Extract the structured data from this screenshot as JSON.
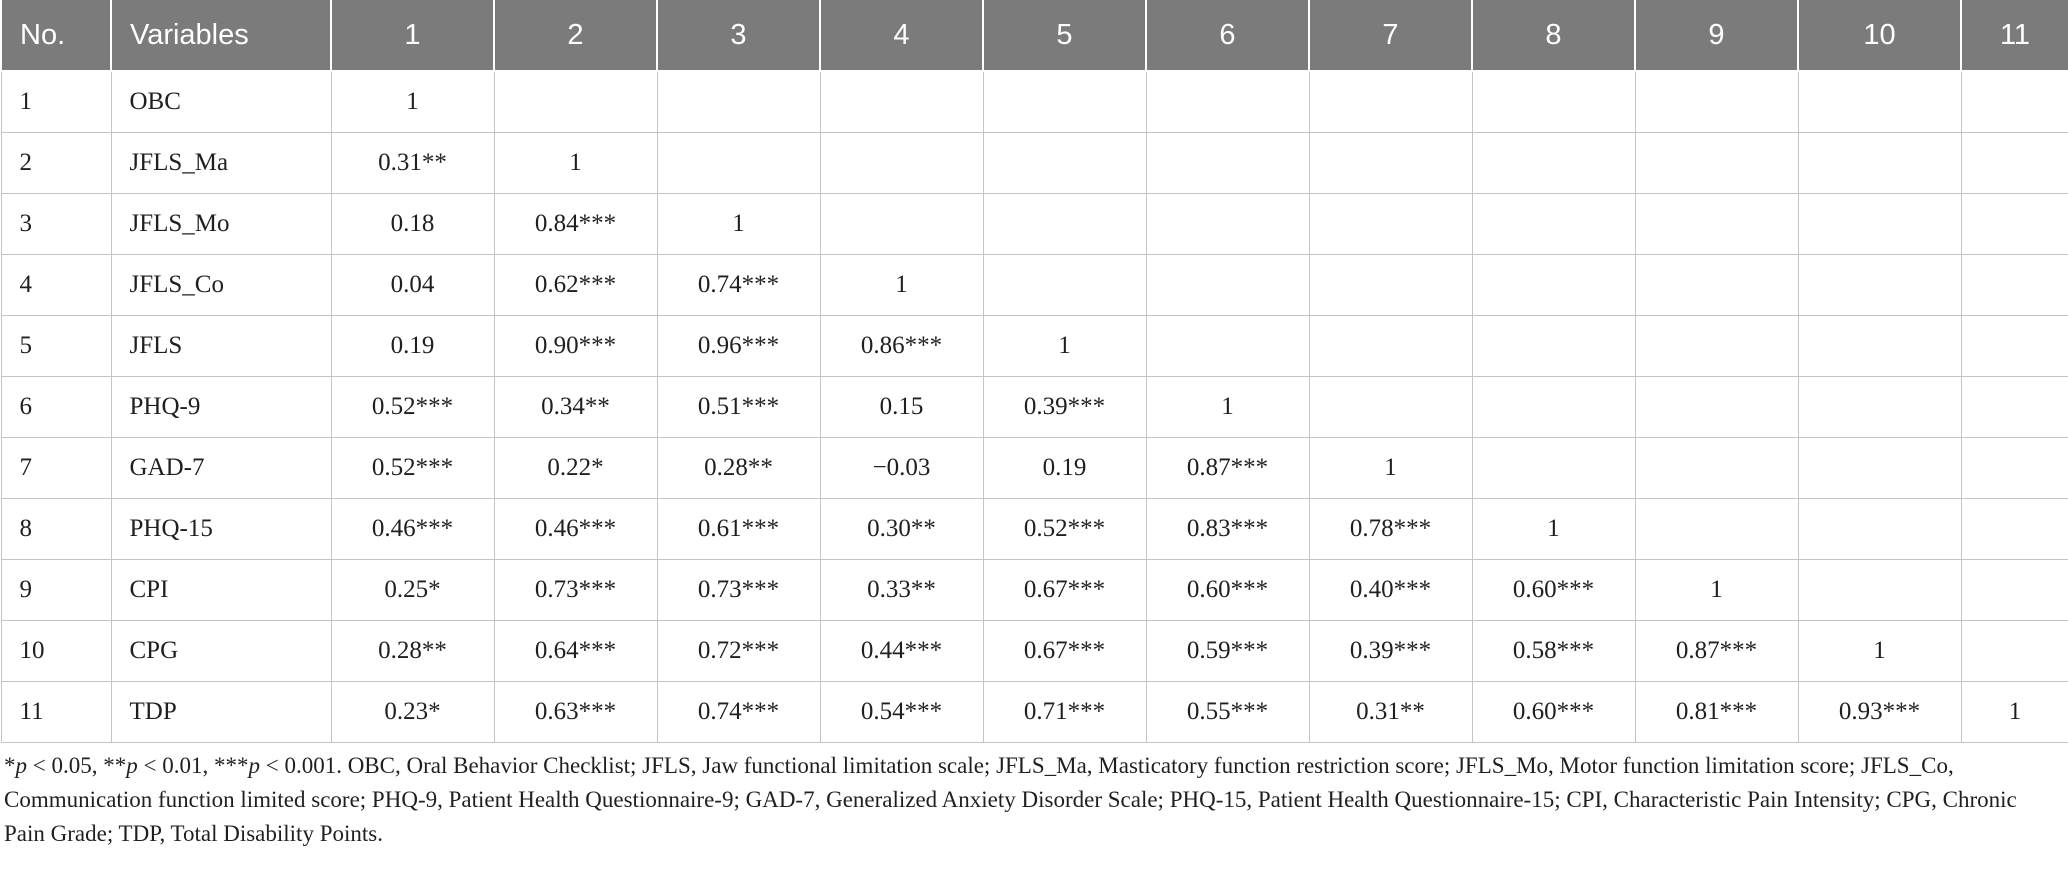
{
  "table": {
    "headers": [
      "No.",
      "Variables",
      "1",
      "2",
      "3",
      "4",
      "5",
      "6",
      "7",
      "8",
      "9",
      "10",
      "11"
    ],
    "rows": [
      {
        "no": "1",
        "variable": "OBC",
        "cells": [
          "1",
          "",
          "",
          "",
          "",
          "",
          "",
          "",
          "",
          "",
          ""
        ]
      },
      {
        "no": "2",
        "variable": "JFLS_Ma",
        "cells": [
          "0.31**",
          "1",
          "",
          "",
          "",
          "",
          "",
          "",
          "",
          "",
          ""
        ]
      },
      {
        "no": "3",
        "variable": "JFLS_Mo",
        "cells": [
          "0.18",
          "0.84***",
          "1",
          "",
          "",
          "",
          "",
          "",
          "",
          "",
          ""
        ]
      },
      {
        "no": "4",
        "variable": "JFLS_Co",
        "cells": [
          "0.04",
          "0.62***",
          "0.74***",
          "1",
          "",
          "",
          "",
          "",
          "",
          "",
          ""
        ]
      },
      {
        "no": "5",
        "variable": "JFLS",
        "cells": [
          "0.19",
          "0.90***",
          "0.96***",
          "0.86***",
          "1",
          "",
          "",
          "",
          "",
          "",
          ""
        ]
      },
      {
        "no": "6",
        "variable": "PHQ-9",
        "cells": [
          "0.52***",
          "0.34**",
          "0.51***",
          "0.15",
          "0.39***",
          "1",
          "",
          "",
          "",
          "",
          ""
        ]
      },
      {
        "no": "7",
        "variable": "GAD-7",
        "cells": [
          "0.52***",
          "0.22*",
          "0.28**",
          "−0.03",
          "0.19",
          "0.87***",
          "1",
          "",
          "",
          "",
          ""
        ]
      },
      {
        "no": "8",
        "variable": "PHQ-15",
        "cells": [
          "0.46***",
          "0.46***",
          "0.61***",
          "0.30**",
          "0.52***",
          "0.83***",
          "0.78***",
          "1",
          "",
          "",
          ""
        ]
      },
      {
        "no": "9",
        "variable": "CPI",
        "cells": [
          "0.25*",
          "0.73***",
          "0.73***",
          "0.33**",
          "0.67***",
          "0.60***",
          "0.40***",
          "0.60***",
          "1",
          "",
          ""
        ]
      },
      {
        "no": "10",
        "variable": "CPG",
        "cells": [
          "0.28**",
          "0.64***",
          "0.72***",
          "0.44***",
          "0.67***",
          "0.59***",
          "0.39***",
          "0.58***",
          "0.87***",
          "1",
          ""
        ]
      },
      {
        "no": "11",
        "variable": "TDP",
        "cells": [
          "0.23*",
          "0.63***",
          "0.74***",
          "0.54***",
          "0.71***",
          "0.55***",
          "0.31**",
          "0.60***",
          "0.81***",
          "0.93***",
          "1"
        ]
      }
    ]
  },
  "footnote": {
    "p1": "p",
    "t1": " < 0.05, **",
    "p2": "p",
    "t2": " < 0.01, ***",
    "p3": "p",
    "t3": " < 0.001. OBC, Oral Behavior Checklist; JFLS, Jaw functional limitation scale; JFLS_Ma, Masticatory function restriction score; JFLS_Mo, Motor function limitation score; JFLS_Co, Communication function limited score; PHQ-9, Patient Health Questionnaire-9; GAD-7, Generalized Anxiety Disorder Scale; PHQ-15, Patient Health Questionnaire-15; CPI, Characteristic Pain Intensity; CPG, Chronic Pain Grade; TDP, Total Disability Points.",
    "lead": "*"
  },
  "colors": {
    "header_bg": "#7b7b7b",
    "header_text": "#ffffff",
    "grid": "#c4c4c4",
    "text": "#1f1f1f"
  }
}
